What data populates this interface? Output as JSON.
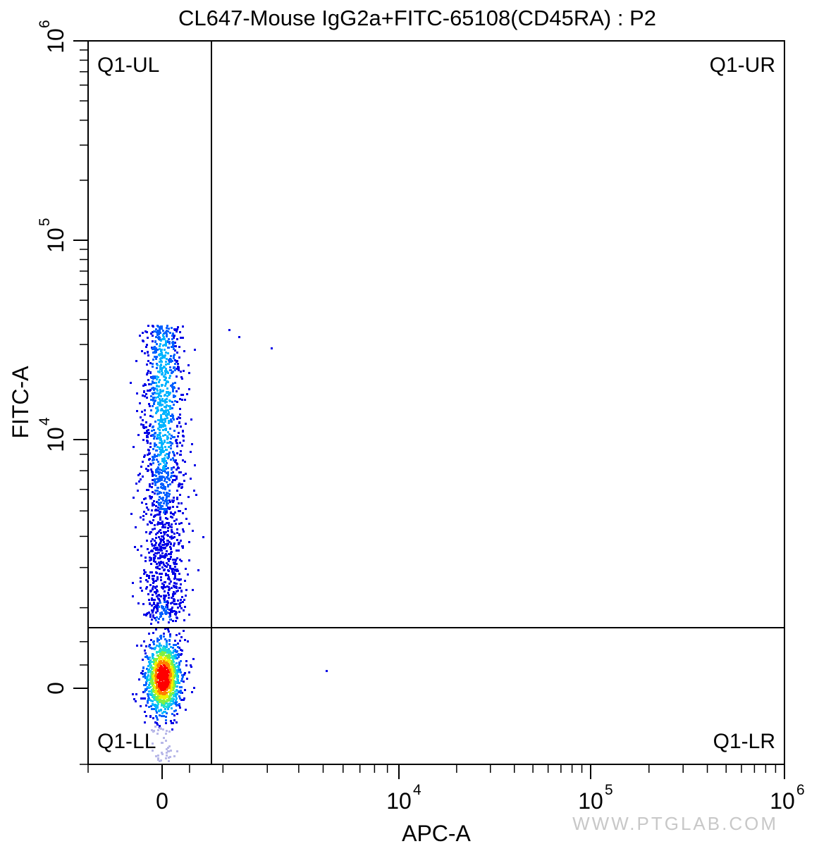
{
  "chart_data": {
    "type": "scatter",
    "subtype": "flow-cytometry-density-plot",
    "title": "CL647-Mouse IgG2a+FITC-65108(CD45RA) : P2",
    "xlabel": "APC-A",
    "ylabel": "FITC-A",
    "x_scale": "biexponential",
    "y_scale": "biexponential",
    "x_ticks": [
      {
        "value": 0,
        "base": "0",
        "exp": ""
      },
      {
        "value": 10000,
        "base": "10",
        "exp": "4"
      },
      {
        "value": 100000,
        "base": "10",
        "exp": "5"
      },
      {
        "value": 1000000,
        "base": "10",
        "exp": "6"
      }
    ],
    "y_ticks": [
      {
        "value": 0,
        "base": "0",
        "exp": ""
      },
      {
        "value": 10000,
        "base": "10",
        "exp": "4"
      },
      {
        "value": 100000,
        "base": "10",
        "exp": "5"
      },
      {
        "value": 1000000,
        "base": "10",
        "exp": "6"
      }
    ],
    "xlim": [
      -1000,
      1000000
    ],
    "ylim": [
      -1000,
      1000000
    ],
    "gates": {
      "x_threshold": 1800,
      "y_threshold": 2600
    },
    "quadrants": [
      "Q1-UL",
      "Q1-UR",
      "Q1-LL",
      "Q1-LR"
    ],
    "population": {
      "x_center": 0,
      "x_spread": 400,
      "y_dense_center": 500,
      "y_upper_max": 45000,
      "approx_events": 2600
    },
    "outliers": [
      {
        "x": 2100,
        "y": 36000
      },
      {
        "x": 2300,
        "y": 33000
      },
      {
        "x": 3100,
        "y": 29000
      },
      {
        "x": 5100,
        "y": 800
      }
    ],
    "density_colors": [
      "#0000e6",
      "#0060ff",
      "#00b4ff",
      "#20e0d0",
      "#80f040",
      "#f0f000",
      "#ff8000",
      "#ff0000"
    ]
  },
  "watermark": "WWW.PTGLAB.COM"
}
